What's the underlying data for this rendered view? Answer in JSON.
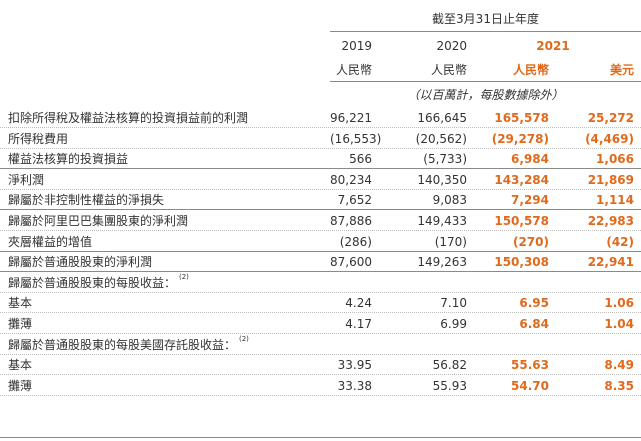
{
  "header": {
    "period": "截至3月31日止年度",
    "years": [
      "2019",
      "2020",
      "2021"
    ],
    "currencies": [
      "人民幣",
      "人民幣",
      "人民幣",
      "美元"
    ],
    "unit_note": "（以百萬計，每股數據除外）"
  },
  "rows": [
    {
      "label": "扣除所得稅及權益法核算的投資損益前的利潤",
      "values": [
        "96,221",
        "166,645",
        "165,578",
        "25,272"
      ]
    },
    {
      "label": "所得稅費用",
      "values": [
        "(16,553)",
        "(20,562)",
        "(29,278)",
        "(4,469)"
      ]
    },
    {
      "label": "權益法核算的投資損益",
      "values": [
        "566",
        "(5,733)",
        "6,984",
        "1,066"
      ]
    },
    {
      "label": "淨利潤",
      "values": [
        "80,234",
        "140,350",
        "143,284",
        "21,869"
      ]
    },
    {
      "label": "歸屬於非控制性權益的淨損失",
      "values": [
        "7,652",
        "9,083",
        "7,294",
        "1,114"
      ]
    },
    {
      "label": "歸屬於阿里巴巴集團股東的淨利潤",
      "values": [
        "87,886",
        "149,433",
        "150,578",
        "22,983"
      ]
    },
    {
      "label": "夾層權益的增值",
      "values": [
        "(286)",
        "(170)",
        "(270)",
        "(42)"
      ]
    },
    {
      "label": "歸屬於普通股股東的淨利潤",
      "values": [
        "87,600",
        "149,263",
        "150,308",
        "22,941"
      ]
    },
    {
      "label": "歸屬於普通股股東的每股收益：",
      "note": "(2)",
      "values": [
        "",
        "",
        "",
        ""
      ]
    },
    {
      "label": "基本",
      "values": [
        "4.24",
        "7.10",
        "6.95",
        "1.06"
      ]
    },
    {
      "label": "攤薄",
      "values": [
        "4.17",
        "6.99",
        "6.84",
        "1.04"
      ]
    },
    {
      "label": "歸屬於普通股股東的每股美國存託股收益：",
      "note": "(2)",
      "values": [
        "",
        "",
        "",
        ""
      ]
    },
    {
      "label": "基本",
      "values": [
        "33.95",
        "56.82",
        "55.63",
        "8.49"
      ]
    },
    {
      "label": "攤薄",
      "values": [
        "33.38",
        "55.93",
        "54.70",
        "8.35"
      ]
    }
  ],
  "colors": {
    "accent": "#e06a1c",
    "text": "#333333",
    "rule": "#8a8a8a"
  }
}
